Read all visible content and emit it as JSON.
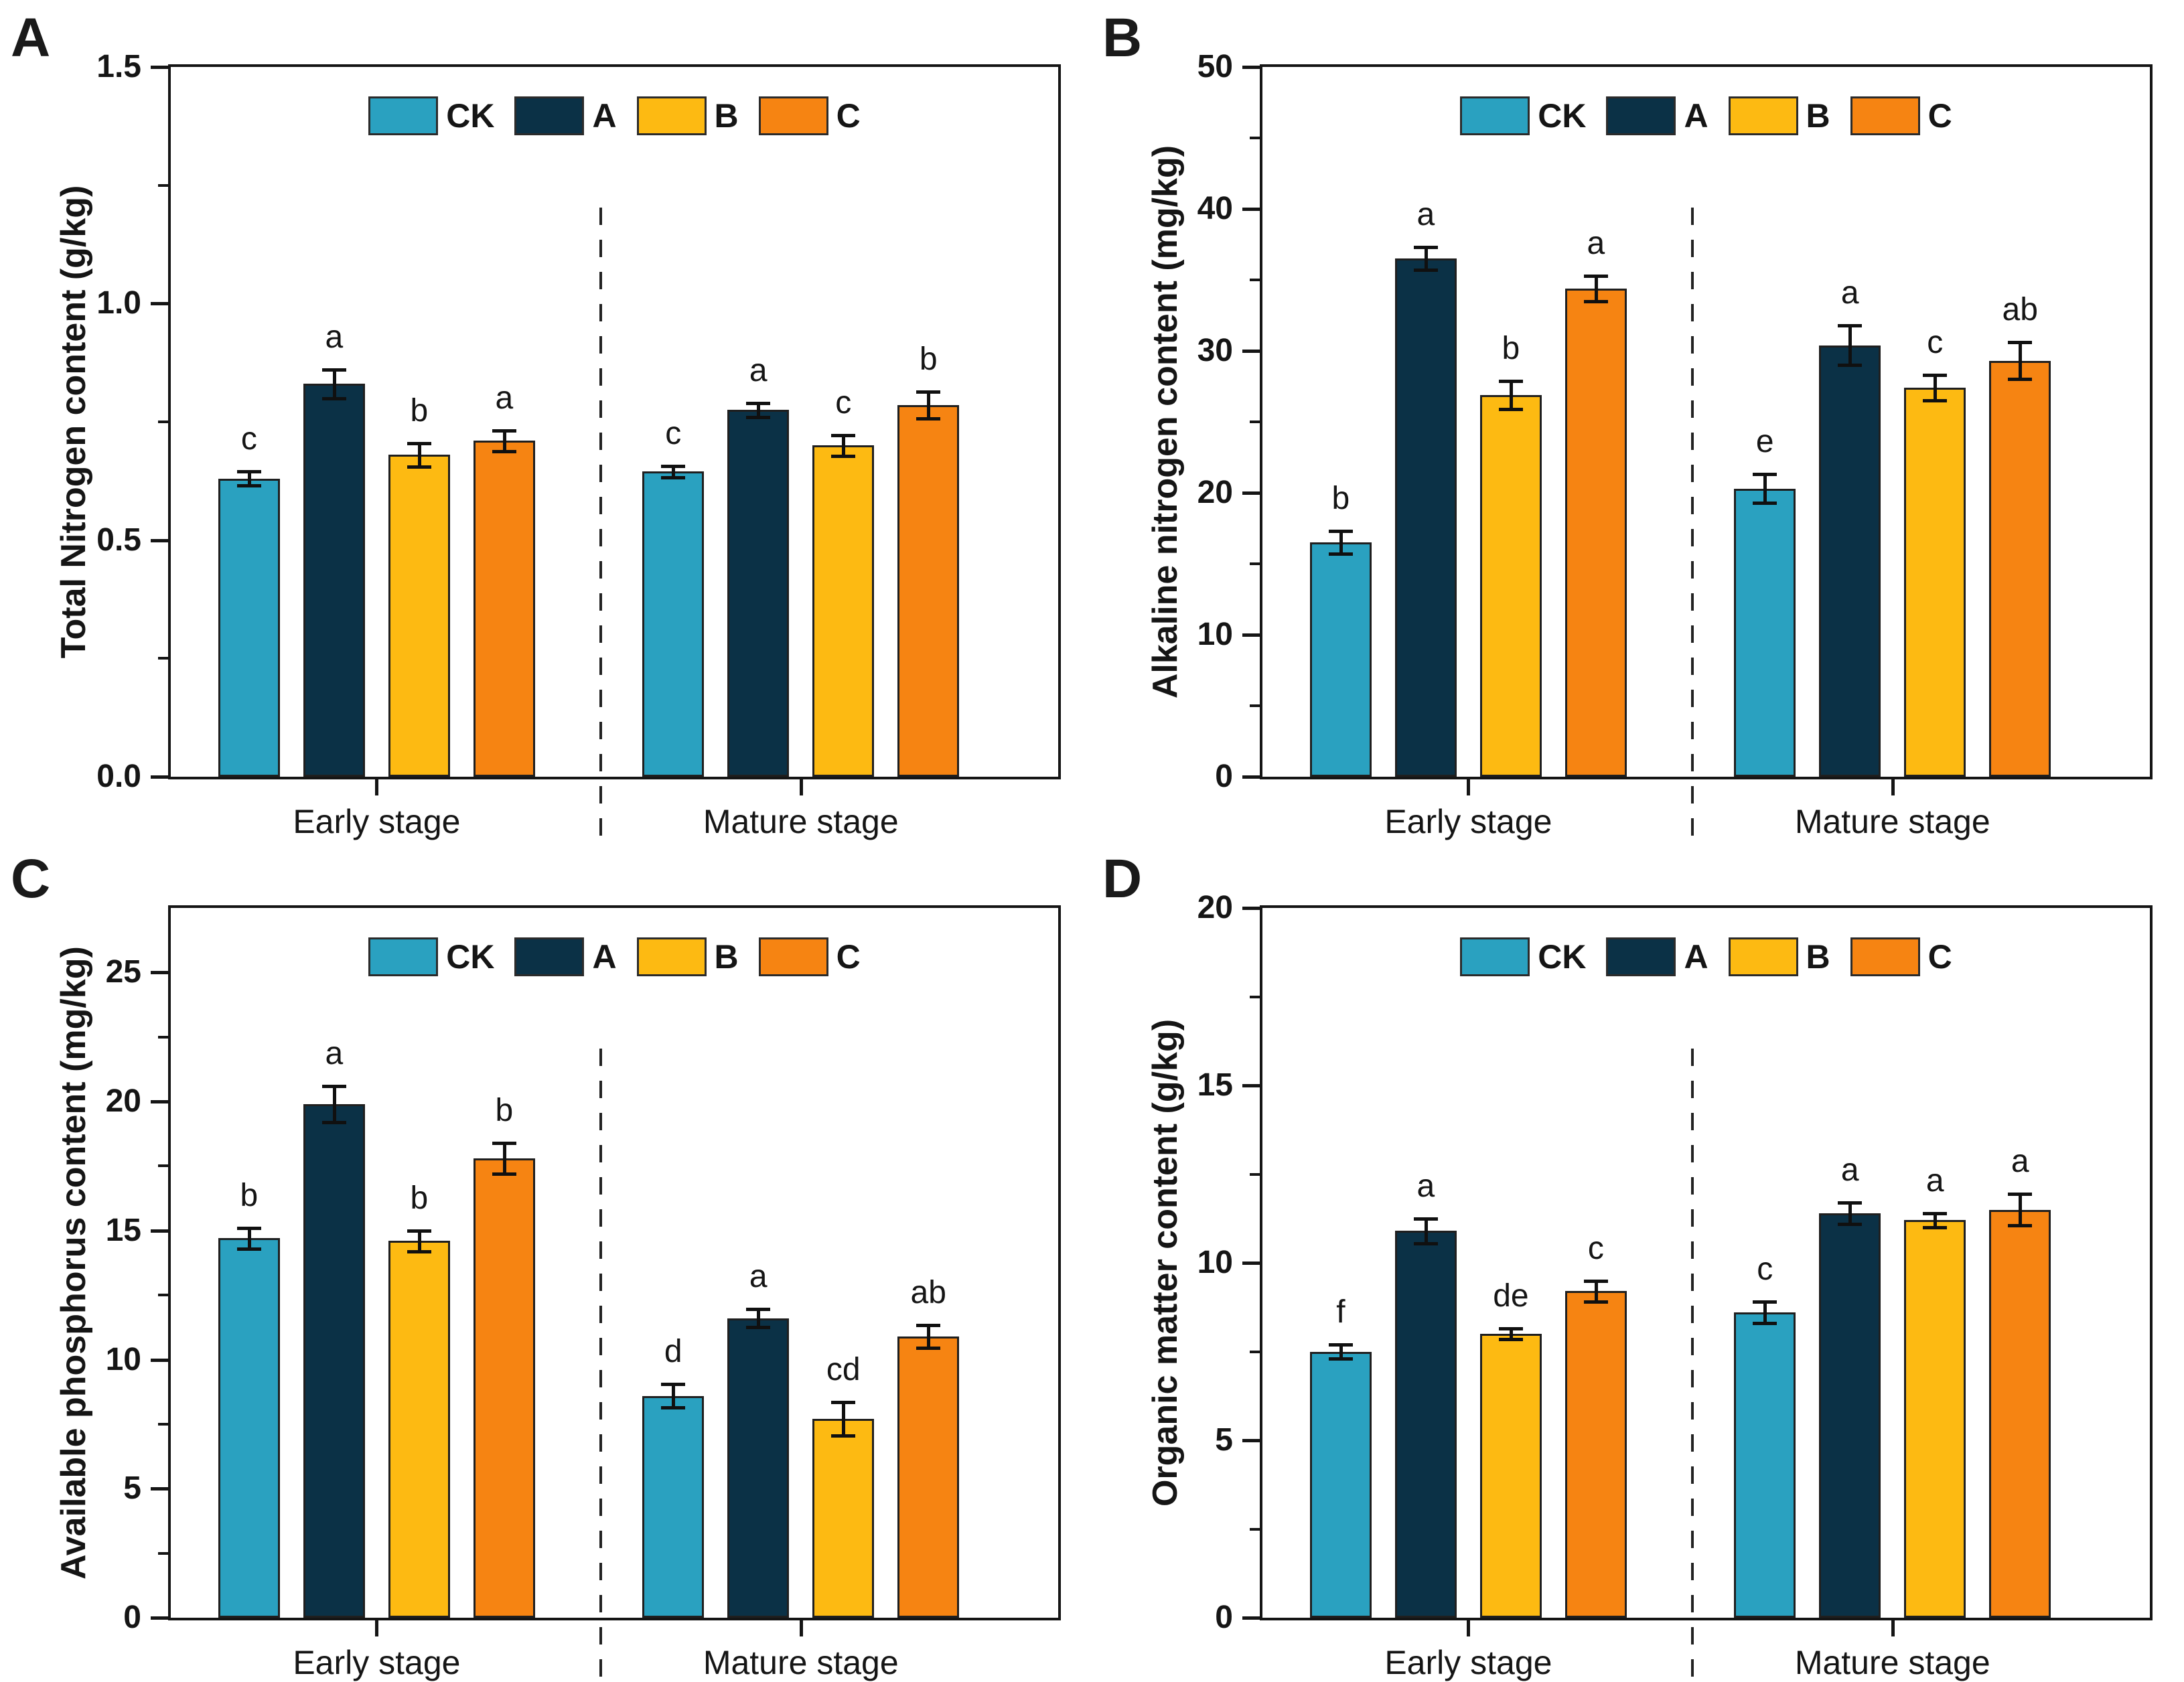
{
  "colors": {
    "CK": "#2AA1C0",
    "A": "#0B3146",
    "B": "#FDBA12",
    "C": "#F68412",
    "axis": "#151515"
  },
  "chart_data": [
    {
      "type": "bar",
      "panel_label": "A",
      "ylabel": "Total Nitrogen content (g/kg)",
      "ylim": [
        0,
        1.5
      ],
      "yticks": [
        0,
        0.5,
        1.0,
        1.5
      ],
      "ytick_labels": [
        "0.0",
        "0.5",
        "1.0",
        "1.5"
      ],
      "minor_tick_step": 0.25,
      "grid": false,
      "legend_position": "top-center",
      "group_divider": "dashed",
      "categories": [
        "Early stage",
        "Mature stage"
      ],
      "legend": [
        "CK",
        "A",
        "B",
        "C"
      ],
      "series": [
        {
          "name": "CK",
          "values": [
            0.63,
            0.645
          ],
          "errors": [
            0.015,
            0.012
          ],
          "letters": [
            "c",
            "c"
          ]
        },
        {
          "name": "A",
          "values": [
            0.83,
            0.775
          ],
          "errors": [
            0.03,
            0.015
          ],
          "letters": [
            "a",
            "a"
          ]
        },
        {
          "name": "B",
          "values": [
            0.68,
            0.7
          ],
          "errors": [
            0.025,
            0.022
          ],
          "letters": [
            "b",
            "c"
          ]
        },
        {
          "name": "C",
          "values": [
            0.71,
            0.785
          ],
          "errors": [
            0.022,
            0.028
          ],
          "letters": [
            "a",
            "b"
          ]
        }
      ]
    },
    {
      "type": "bar",
      "panel_label": "B",
      "ylabel": "Alkaline nitrogen content (mg/kg)",
      "ylim": [
        0,
        50
      ],
      "yticks": [
        0,
        10,
        20,
        30,
        40,
        50
      ],
      "ytick_labels": [
        "0",
        "10",
        "20",
        "30",
        "40",
        "50"
      ],
      "minor_tick_step": 5,
      "grid": false,
      "legend_position": "top-center",
      "group_divider": "dashed",
      "categories": [
        "Early stage",
        "Mature stage"
      ],
      "legend": [
        "CK",
        "A",
        "B",
        "C"
      ],
      "series": [
        {
          "name": "CK",
          "values": [
            16.5,
            20.3
          ],
          "errors": [
            0.8,
            1.0
          ],
          "letters": [
            "b",
            "e"
          ]
        },
        {
          "name": "A",
          "values": [
            36.5,
            30.4
          ],
          "errors": [
            0.8,
            1.4
          ],
          "letters": [
            "a",
            "a"
          ]
        },
        {
          "name": "B",
          "values": [
            26.9,
            27.4
          ],
          "errors": [
            1.0,
            0.9
          ],
          "letters": [
            "b",
            "c"
          ]
        },
        {
          "name": "C",
          "values": [
            34.4,
            29.3
          ],
          "errors": [
            0.9,
            1.3
          ],
          "letters": [
            "a",
            "ab"
          ]
        }
      ]
    },
    {
      "type": "bar",
      "panel_label": "C",
      "ylabel": "Available phosphorus content (mg/kg)",
      "ylim": [
        0,
        27.5
      ],
      "yticks": [
        0,
        5,
        10,
        15,
        20,
        25
      ],
      "ytick_labels": [
        "0",
        "5",
        "10",
        "15",
        "20",
        "25"
      ],
      "minor_tick_step": 2.5,
      "grid": false,
      "legend_position": "top-center",
      "group_divider": "dashed",
      "categories": [
        "Early stage",
        "Mature stage"
      ],
      "legend": [
        "CK",
        "A",
        "B",
        "C"
      ],
      "series": [
        {
          "name": "CK",
          "values": [
            14.7,
            8.6
          ],
          "errors": [
            0.4,
            0.45
          ],
          "letters": [
            "b",
            "d"
          ]
        },
        {
          "name": "A",
          "values": [
            19.9,
            11.6
          ],
          "errors": [
            0.7,
            0.35
          ],
          "letters": [
            "a",
            "a"
          ]
        },
        {
          "name": "B",
          "values": [
            14.6,
            7.7
          ],
          "errors": [
            0.4,
            0.65
          ],
          "letters": [
            "b",
            "cd"
          ]
        },
        {
          "name": "C",
          "values": [
            17.8,
            10.9
          ],
          "errors": [
            0.6,
            0.45
          ],
          "letters": [
            "b",
            "ab"
          ]
        }
      ]
    },
    {
      "type": "bar",
      "panel_label": "D",
      "ylabel": "Organic matter content (g/kg)",
      "ylim": [
        0,
        20
      ],
      "yticks": [
        0,
        5,
        10,
        15,
        20
      ],
      "ytick_labels": [
        "0",
        "5",
        "10",
        "15",
        "20"
      ],
      "minor_tick_step": 2.5,
      "grid": false,
      "legend_position": "top-center",
      "group_divider": "dashed",
      "categories": [
        "Early stage",
        "Mature stage"
      ],
      "legend": [
        "CK",
        "A",
        "B",
        "C"
      ],
      "series": [
        {
          "name": "CK",
          "values": [
            7.5,
            8.6
          ],
          "errors": [
            0.2,
            0.3
          ],
          "letters": [
            "f",
            "c"
          ]
        },
        {
          "name": "A",
          "values": [
            10.9,
            11.4
          ],
          "errors": [
            0.35,
            0.3
          ],
          "letters": [
            "a",
            "a"
          ]
        },
        {
          "name": "B",
          "values": [
            8.0,
            11.2
          ],
          "errors": [
            0.15,
            0.2
          ],
          "letters": [
            "de",
            "a"
          ]
        },
        {
          "name": "C",
          "values": [
            9.2,
            11.5
          ],
          "errors": [
            0.3,
            0.45
          ],
          "letters": [
            "c",
            "a"
          ]
        }
      ]
    }
  ]
}
